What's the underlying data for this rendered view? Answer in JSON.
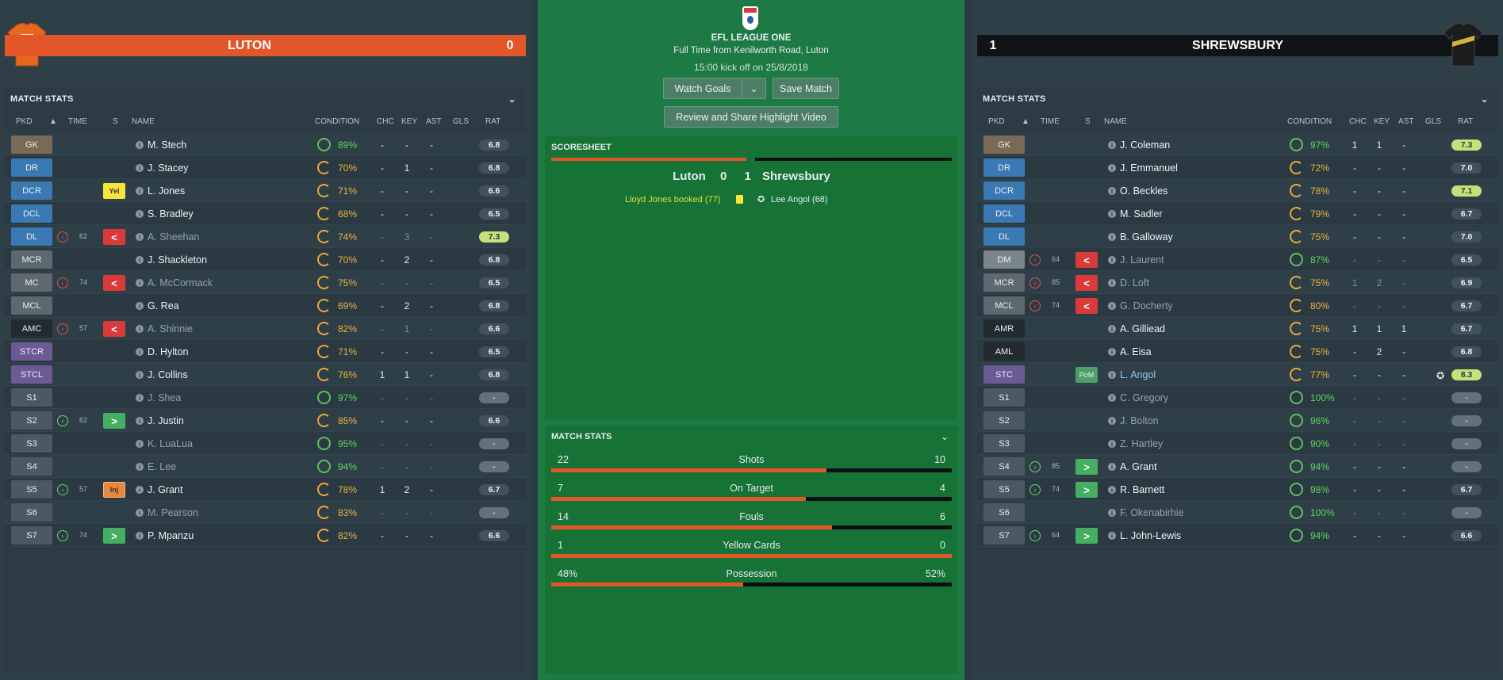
{
  "colors": {
    "home": "#e2562a",
    "away": "#0c1012",
    "pitch": "#1d7a44"
  },
  "home": {
    "name": "LUTON",
    "score": "0",
    "stats_title": "MATCH STATS",
    "headers": {
      "pkd": "PKD",
      "time": "TIME",
      "s": "S",
      "name": "NAME",
      "condition": "CONDITION",
      "chc": "CHC",
      "key": "KEY",
      "ast": "AST",
      "gls": "GLS",
      "rat": "RAT"
    },
    "players": [
      {
        "pos": "GK",
        "pc": "#7a6a55",
        "name": "M. Stech",
        "cond": "89%",
        "cc": "green",
        "chc": "-",
        "key": "-",
        "ast": "-",
        "gls": "",
        "rat": "6.8",
        "rt": ""
      },
      {
        "pos": "DR",
        "pc": "#3b79b5",
        "name": "J. Stacey",
        "cond": "70%",
        "cc": "orange",
        "chc": "-",
        "key": "1",
        "ast": "-",
        "gls": "",
        "rat": "6.8",
        "rt": ""
      },
      {
        "pos": "DCR",
        "pc": "#3b79b5",
        "name": "L. Jones",
        "cond": "71%",
        "cc": "orange",
        "chc": "-",
        "key": "-",
        "ast": "-",
        "gls": "",
        "rat": "6.6",
        "rt": "",
        "badge": "Yel",
        "bt": "yel"
      },
      {
        "pos": "DCL",
        "pc": "#3b79b5",
        "name": "S. Bradley",
        "cond": "68%",
        "cc": "orange",
        "chc": "-",
        "key": "-",
        "ast": "-",
        "gls": "",
        "rat": "6.5",
        "rt": ""
      },
      {
        "pos": "DL",
        "pc": "#3b79b5",
        "name": "A. Sheehan",
        "dim": true,
        "cond": "74%",
        "cc": "orange",
        "chc": "-",
        "key": "3",
        "ast": "-",
        "gls": "",
        "rat": "7.3",
        "rt": "hi",
        "sub": "out",
        "min": "62",
        "badge": "<",
        "bt": "so"
      },
      {
        "pos": "MCR",
        "pc": "#5d6870",
        "name": "J. Shackleton",
        "cond": "70%",
        "cc": "orange",
        "chc": "-",
        "key": "2",
        "ast": "-",
        "gls": "",
        "rat": "6.8",
        "rt": ""
      },
      {
        "pos": "MC",
        "pc": "#5d6870",
        "name": "A. McCormack",
        "dim": true,
        "cond": "75%",
        "cc": "orange",
        "chc": "-",
        "key": "-",
        "ast": "-",
        "gls": "",
        "rat": "6.5",
        "rt": "",
        "sub": "out",
        "min": "74",
        "badge": "<",
        "bt": "so"
      },
      {
        "pos": "MCL",
        "pc": "#5d6870",
        "name": "G. Rea",
        "cond": "69%",
        "cc": "orange",
        "chc": "-",
        "key": "2",
        "ast": "-",
        "gls": "",
        "rat": "6.8",
        "rt": ""
      },
      {
        "pos": "AMC",
        "pc": "#232b30",
        "name": "A. Shinnie",
        "dim": true,
        "cond": "82%",
        "cc": "orange",
        "chc": "-",
        "key": "1",
        "ast": "-",
        "gls": "",
        "rat": "6.6",
        "rt": "",
        "sub": "out",
        "min": "57",
        "badge": "<",
        "bt": "so"
      },
      {
        "pos": "STCR",
        "pc": "#6b5a96",
        "name": "D. Hylton",
        "cond": "71%",
        "cc": "orange",
        "chc": "-",
        "key": "-",
        "ast": "-",
        "gls": "",
        "rat": "6.5",
        "rt": ""
      },
      {
        "pos": "STCL",
        "pc": "#6b5a96",
        "name": "J. Collins",
        "cond": "76%",
        "cc": "orange",
        "chc": "1",
        "key": "1",
        "ast": "-",
        "gls": "",
        "rat": "6.8",
        "rt": ""
      },
      {
        "pos": "S1",
        "pc": "#4b5a62",
        "name": "J. Shea",
        "dim": true,
        "cond": "97%",
        "cc": "green",
        "chc": "-",
        "key": "-",
        "ast": "-",
        "gls": "",
        "rat": "-",
        "rt": "dash"
      },
      {
        "pos": "S2",
        "pc": "#4b5a62",
        "name": "J. Justin",
        "cond": "85%",
        "cc": "orange",
        "chc": "-",
        "key": "-",
        "ast": "-",
        "gls": "",
        "rat": "6.6",
        "rt": "",
        "sub": "in",
        "min": "62",
        "badge": ">",
        "bt": "si"
      },
      {
        "pos": "S3",
        "pc": "#4b5a62",
        "name": "K. LuaLua",
        "dim": true,
        "cond": "95%",
        "cc": "green",
        "chc": "-",
        "key": "-",
        "ast": "-",
        "gls": "",
        "rat": "-",
        "rt": "dash"
      },
      {
        "pos": "S4",
        "pc": "#4b5a62",
        "name": "E. Lee",
        "dim": true,
        "cond": "94%",
        "cc": "green",
        "chc": "-",
        "key": "-",
        "ast": "-",
        "gls": "",
        "rat": "-",
        "rt": "dash"
      },
      {
        "pos": "S5",
        "pc": "#4b5a62",
        "name": "J. Grant",
        "cond": "78%",
        "cc": "orange",
        "chc": "1",
        "key": "2",
        "ast": "-",
        "gls": "",
        "rat": "6.7",
        "rt": "",
        "sub": "in",
        "min": "57",
        "badge": "Inj",
        "bt": "inj"
      },
      {
        "pos": "S6",
        "pc": "#4b5a62",
        "name": "M. Pearson",
        "dim": true,
        "cond": "83%",
        "cc": "orange",
        "chc": "-",
        "key": "-",
        "ast": "-",
        "gls": "",
        "rat": "-",
        "rt": "dash"
      },
      {
        "pos": "S7",
        "pc": "#4b5a62",
        "name": "P. Mpanzu",
        "cond": "82%",
        "cc": "orange",
        "chc": "-",
        "key": "-",
        "ast": "-",
        "gls": "",
        "rat": "6.6",
        "rt": "",
        "sub": "in",
        "min": "74",
        "badge": ">",
        "bt": "si"
      }
    ]
  },
  "away": {
    "name": "SHREWSBURY",
    "score": "1",
    "stats_title": "MATCH STATS",
    "headers": {
      "pkd": "PKD",
      "time": "TIME",
      "s": "S",
      "name": "NAME",
      "condition": "CONDITION",
      "chc": "CHC",
      "key": "KEY",
      "ast": "AST",
      "gls": "GLS",
      "rat": "RAT"
    },
    "players": [
      {
        "pos": "GK",
        "pc": "#7a6a55",
        "name": "J. Coleman",
        "cond": "97%",
        "cc": "green",
        "chc": "1",
        "key": "1",
        "ast": "-",
        "gls": "",
        "rat": "7.3",
        "rt": "hi"
      },
      {
        "pos": "DR",
        "pc": "#3b79b5",
        "name": "J. Emmanuel",
        "cond": "72%",
        "cc": "orange",
        "chc": "-",
        "key": "-",
        "ast": "-",
        "gls": "",
        "rat": "7.0",
        "rt": ""
      },
      {
        "pos": "DCR",
        "pc": "#3b79b5",
        "name": "O. Beckles",
        "cond": "78%",
        "cc": "orange",
        "chc": "-",
        "key": "-",
        "ast": "-",
        "gls": "",
        "rat": "7.1",
        "rt": "hi"
      },
      {
        "pos": "DCL",
        "pc": "#3b79b5",
        "name": "M. Sadler",
        "cond": "79%",
        "cc": "orange",
        "chc": "-",
        "key": "-",
        "ast": "-",
        "gls": "",
        "rat": "6.7",
        "rt": ""
      },
      {
        "pos": "DL",
        "pc": "#3b79b5",
        "name": "B. Galloway",
        "cond": "75%",
        "cc": "orange",
        "chc": "-",
        "key": "-",
        "ast": "-",
        "gls": "",
        "rat": "7.0",
        "rt": ""
      },
      {
        "pos": "DM",
        "pc": "#7b868c",
        "name": "J. Laurent",
        "dim": true,
        "cond": "87%",
        "cc": "green",
        "chc": "-",
        "key": "-",
        "ast": "-",
        "gls": "",
        "rat": "6.5",
        "rt": "",
        "sub": "out",
        "min": "64",
        "badge": "<",
        "bt": "so"
      },
      {
        "pos": "MCR",
        "pc": "#5d6870",
        "name": "D. Loft",
        "dim": true,
        "cond": "75%",
        "cc": "orange",
        "chc": "1",
        "key": "2",
        "ast": "-",
        "gls": "",
        "rat": "6.9",
        "rt": "",
        "sub": "out",
        "min": "85",
        "badge": "<",
        "bt": "so"
      },
      {
        "pos": "MCL",
        "pc": "#5d6870",
        "name": "G. Docherty",
        "dim": true,
        "cond": "80%",
        "cc": "orange",
        "chc": "-",
        "key": "-",
        "ast": "-",
        "gls": "",
        "rat": "6.7",
        "rt": "",
        "sub": "out",
        "min": "74",
        "badge": "<",
        "bt": "so"
      },
      {
        "pos": "AMR",
        "pc": "#232b30",
        "name": "A. Gilliead",
        "cond": "75%",
        "cc": "orange",
        "chc": "1",
        "key": "1",
        "ast": "1",
        "gls": "",
        "rat": "6.7",
        "rt": ""
      },
      {
        "pos": "AML",
        "pc": "#232b30",
        "name": "A. Eisa",
        "cond": "75%",
        "cc": "orange",
        "chc": "-",
        "key": "2",
        "ast": "-",
        "gls": "",
        "rat": "6.8",
        "rt": ""
      },
      {
        "pos": "STC",
        "pc": "#6b5a96",
        "name": "L. Angol",
        "pom": true,
        "cond": "77%",
        "cc": "orange",
        "chc": "-",
        "key": "-",
        "ast": "-",
        "gls": "ball",
        "rat": "8.3",
        "rt": "hi",
        "badge": "PoM",
        "bt": "pom"
      },
      {
        "pos": "S1",
        "pc": "#4b5a62",
        "name": "C. Gregory",
        "dim": true,
        "cond": "100%",
        "cc": "green",
        "chc": "-",
        "key": "-",
        "ast": "-",
        "gls": "",
        "rat": "-",
        "rt": "dash"
      },
      {
        "pos": "S2",
        "pc": "#4b5a62",
        "name": "J. Bolton",
        "dim": true,
        "cond": "96%",
        "cc": "green",
        "chc": "-",
        "key": "-",
        "ast": "-",
        "gls": "",
        "rat": "-",
        "rt": "dash"
      },
      {
        "pos": "S3",
        "pc": "#4b5a62",
        "name": "Z. Hartley",
        "dim": true,
        "cond": "90%",
        "cc": "green",
        "chc": "-",
        "key": "-",
        "ast": "-",
        "gls": "",
        "rat": "-",
        "rt": "dash"
      },
      {
        "pos": "S4",
        "pc": "#4b5a62",
        "name": "A. Grant",
        "cond": "94%",
        "cc": "green",
        "chc": "-",
        "key": "-",
        "ast": "-",
        "gls": "",
        "rat": "-",
        "rt": "dash",
        "sub": "in",
        "min": "85",
        "badge": ">",
        "bt": "si"
      },
      {
        "pos": "S5",
        "pc": "#4b5a62",
        "name": "R. Barnett",
        "cond": "98%",
        "cc": "green",
        "chc": "-",
        "key": "-",
        "ast": "-",
        "gls": "",
        "rat": "6.7",
        "rt": "",
        "sub": "in",
        "min": "74",
        "badge": ">",
        "bt": "si"
      },
      {
        "pos": "S6",
        "pc": "#4b5a62",
        "name": "F. Okenabirhie",
        "dim": true,
        "cond": "100%",
        "cc": "green",
        "chc": "-",
        "key": "-",
        "ast": "-",
        "gls": "",
        "rat": "-",
        "rt": "dash"
      },
      {
        "pos": "S7",
        "pc": "#4b5a62",
        "name": "L. John-Lewis",
        "cond": "94%",
        "cc": "green",
        "chc": "-",
        "key": "-",
        "ast": "-",
        "gls": "",
        "rat": "6.6",
        "rt": "",
        "sub": "in",
        "min": "64",
        "badge": ">",
        "bt": "si"
      }
    ]
  },
  "center": {
    "competition": "EFL LEAGUE ONE",
    "venue_line": "Full Time from Kenilworth Road, Luton",
    "kickoff": "15:00 kick off on 25/8/2018",
    "watch_goals": "Watch Goals",
    "save_match": "Save Match",
    "review_share": "Review and Share Highlight Video",
    "scoresheet_title": "SCORESHEET",
    "home_name": "Luton",
    "home_score": "0",
    "away_score": "1",
    "away_name": "Shrewsbury",
    "home_event": "Lloyd Jones booked (77)",
    "away_event": "Lee Angol (68)",
    "match_stats_title": "MATCH STATS",
    "stats": [
      {
        "label": "Shots",
        "home": "22",
        "away": "10",
        "home_share": 0.688
      },
      {
        "label": "On Target",
        "home": "7",
        "away": "4",
        "home_share": 0.636
      },
      {
        "label": "Fouls",
        "home": "14",
        "away": "6",
        "home_share": 0.7
      },
      {
        "label": "Yellow Cards",
        "home": "1",
        "away": "0",
        "home_share": 1.0
      },
      {
        "label": "Possession",
        "home": "48%",
        "away": "52%",
        "home_share": 0.48
      }
    ]
  }
}
